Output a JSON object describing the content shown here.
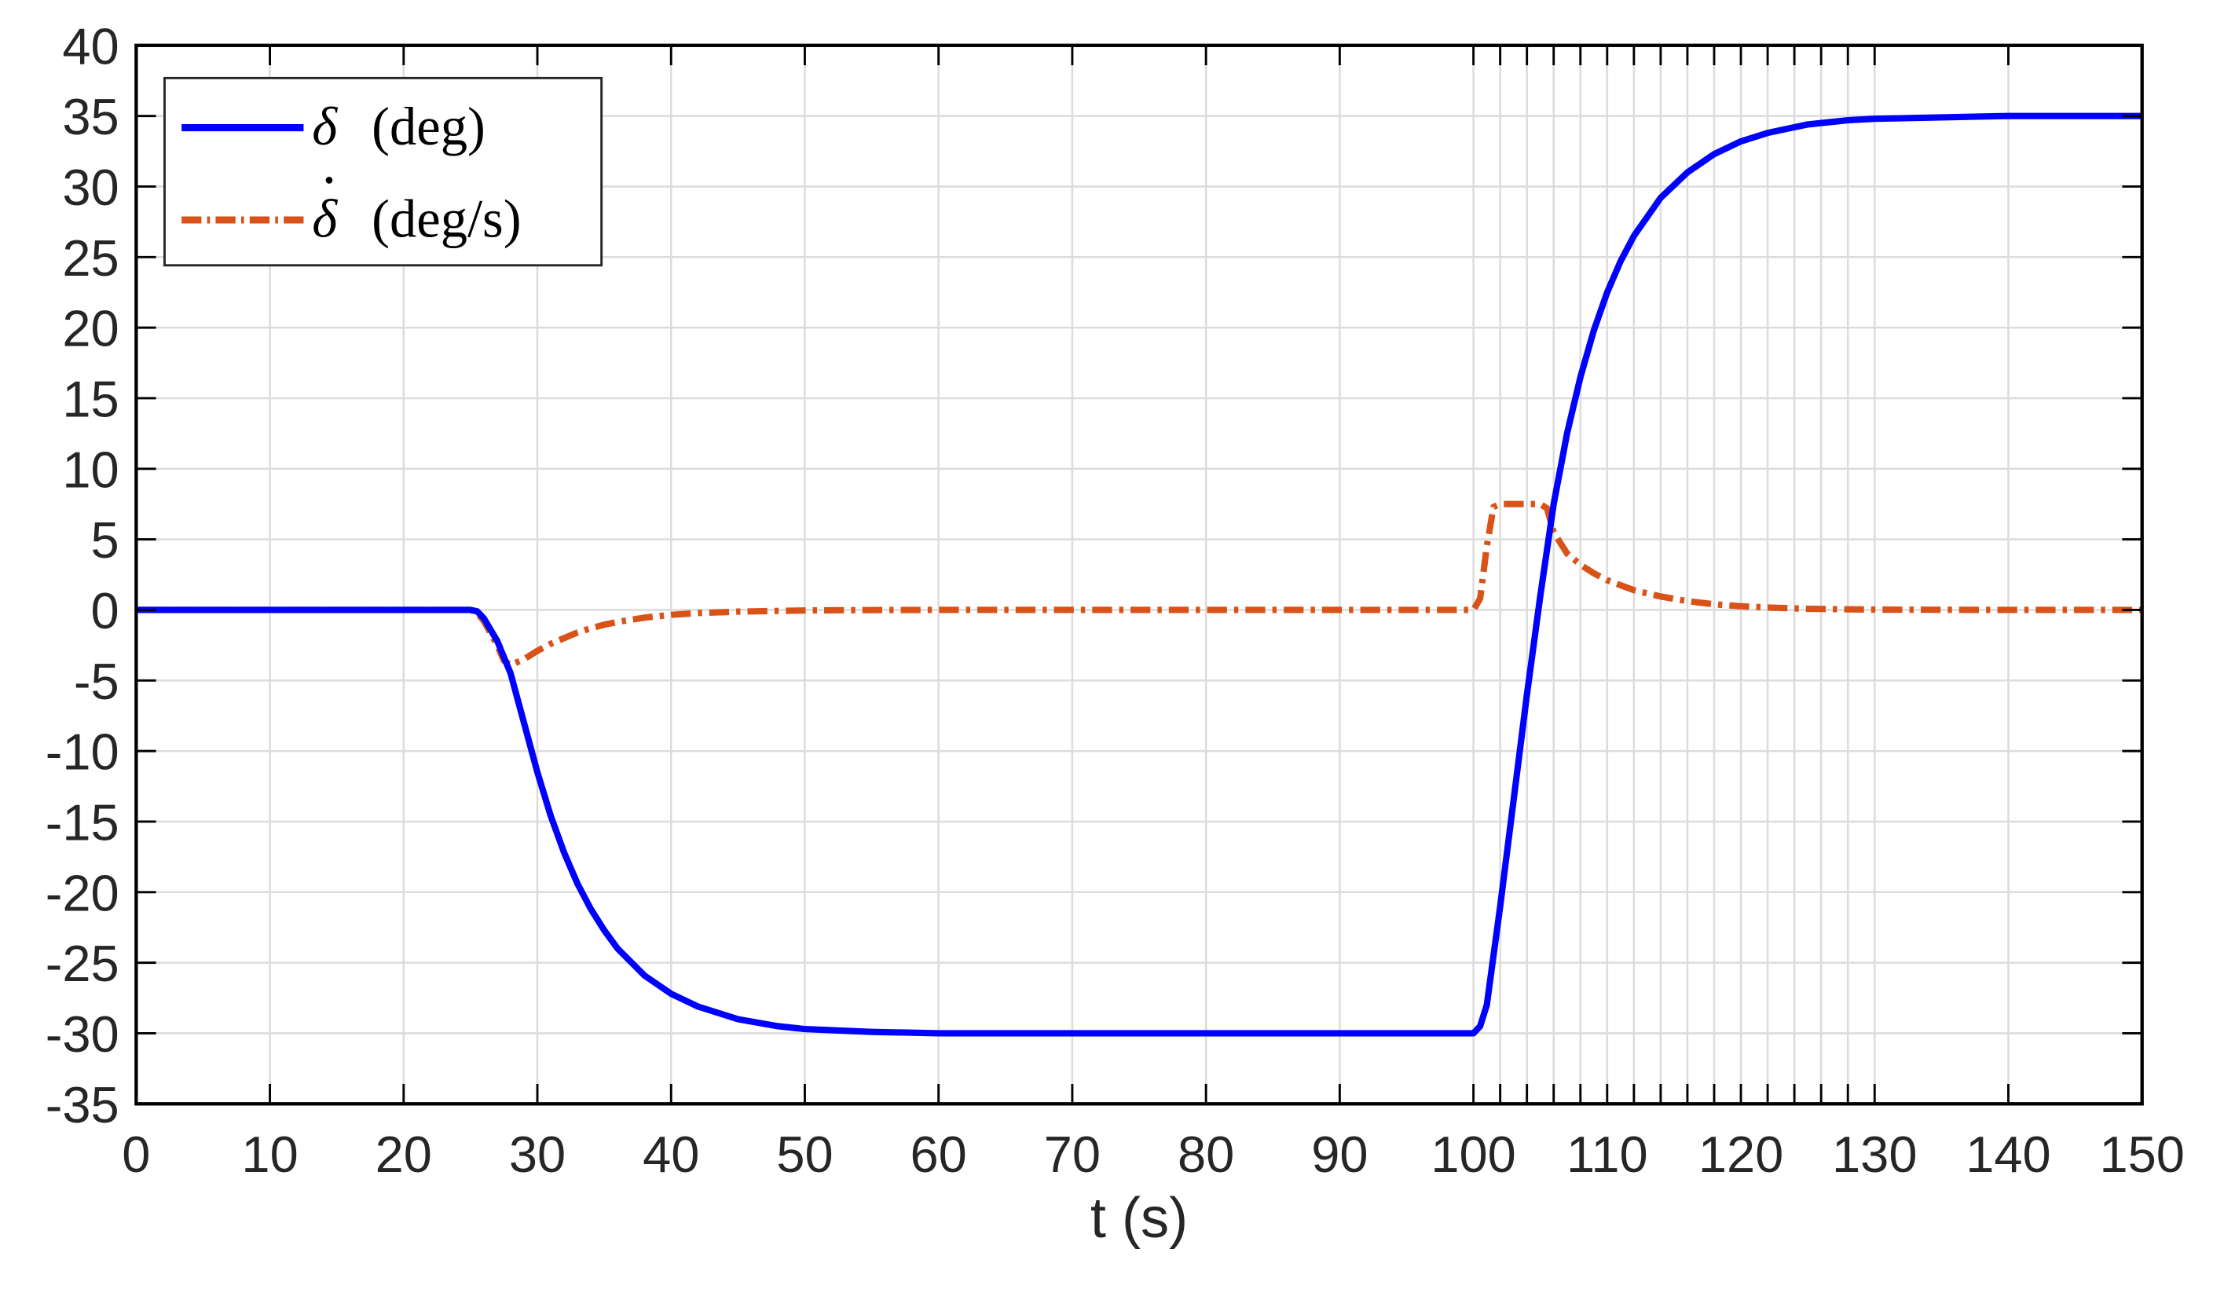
{
  "chart_data": {
    "type": "line",
    "title": "",
    "xlabel": "t (s)",
    "ylabel": "",
    "xlim": [
      0,
      150
    ],
    "ylim": [
      -35,
      40
    ],
    "grid": true,
    "legend_position": "upper-left",
    "x_ticks": [
      0,
      10,
      20,
      30,
      40,
      50,
      60,
      70,
      80,
      90,
      100,
      110,
      120,
      130,
      140,
      150
    ],
    "x_tick_labels": [
      "0",
      "10",
      "20",
      "30",
      "40",
      "50",
      "60",
      "70",
      "80",
      "90",
      "100",
      "110",
      "120",
      "130",
      "140",
      "150"
    ],
    "x_minor_grid": [
      100,
      102,
      104,
      106,
      108,
      110,
      112,
      114,
      116,
      118,
      120,
      122,
      124,
      126,
      128,
      130
    ],
    "y_ticks": [
      40,
      35,
      30,
      25,
      20,
      15,
      10,
      5,
      0,
      -5,
      -10,
      -15,
      -20,
      -25,
      -30,
      -35
    ],
    "y_tick_labels": [
      "40",
      "35",
      "30",
      "25",
      "20",
      "15",
      "10",
      "5",
      "0",
      "-5",
      "-10",
      "-15",
      "-20",
      "-25",
      "-30",
      "-35"
    ],
    "series": [
      {
        "name": "δ (deg)",
        "color": "#0000ff",
        "style": "solid",
        "x": [
          0,
          25,
          25.5,
          26,
          27,
          28,
          29,
          30,
          31,
          32,
          33,
          34,
          35,
          36,
          38,
          40,
          42,
          45,
          48,
          50,
          55,
          60,
          70,
          80,
          90,
          100,
          100.5,
          101,
          102,
          103,
          104,
          105,
          106,
          107,
          108,
          109,
          110,
          111,
          112,
          114,
          116,
          118,
          120,
          122,
          125,
          128,
          130,
          135,
          140,
          145,
          150
        ],
        "values": [
          0,
          0,
          -0.1,
          -0.6,
          -2.2,
          -4.5,
          -8,
          -11.5,
          -14.6,
          -17.2,
          -19.4,
          -21.2,
          -22.7,
          -24,
          -25.9,
          -27.2,
          -28.1,
          -29,
          -29.5,
          -29.7,
          -29.9,
          -30,
          -30,
          -30,
          -30,
          -30,
          -29.5,
          -28,
          -21,
          -13.5,
          -6,
          1,
          7.5,
          12.5,
          16.5,
          19.8,
          22.5,
          24.7,
          26.5,
          29.2,
          31,
          32.3,
          33.2,
          33.8,
          34.4,
          34.7,
          34.8,
          34.9,
          35,
          35,
          35
        ]
      },
      {
        "name": "δ̇ (deg/s)",
        "color": "#d95319",
        "style": "dash-dot",
        "x": [
          0,
          25,
          25.5,
          26,
          27,
          27.5,
          28,
          29,
          30,
          31,
          32,
          33,
          34,
          35,
          36,
          38,
          40,
          42,
          45,
          50,
          55,
          60,
          70,
          80,
          90,
          100,
          100.5,
          101,
          101.5,
          102,
          103,
          104,
          105,
          105.5,
          106,
          107,
          108,
          109,
          110,
          112,
          114,
          116,
          118,
          120,
          122,
          125,
          128,
          130,
          140,
          150
        ],
        "values": [
          0,
          0,
          -0.2,
          -0.8,
          -2.5,
          -3.6,
          -3.9,
          -3.5,
          -2.9,
          -2.4,
          -2,
          -1.6,
          -1.3,
          -1.05,
          -0.85,
          -0.55,
          -0.35,
          -0.22,
          -0.12,
          -0.04,
          -0.01,
          0,
          0,
          0,
          0,
          0,
          0.8,
          4.5,
          7.3,
          7.5,
          7.5,
          7.5,
          7.5,
          7.2,
          5.5,
          4,
          3.2,
          2.6,
          2.1,
          1.4,
          0.95,
          0.62,
          0.4,
          0.26,
          0.17,
          0.08,
          0.04,
          0.02,
          0,
          0
        ]
      }
    ],
    "legend": [
      {
        "label": "δ (deg)",
        "color": "#0000ff",
        "style": "solid"
      },
      {
        "label": "δ̇ (deg/s)",
        "color": "#d95319",
        "style": "dash-dot"
      }
    ]
  },
  "legend": {
    "delta_symbol": "δ",
    "delta_units": "(deg)",
    "delta_dot_symbol": "δ",
    "delta_dot_units": "(deg/s)"
  },
  "axes": {
    "xlabel": "t (s)"
  }
}
